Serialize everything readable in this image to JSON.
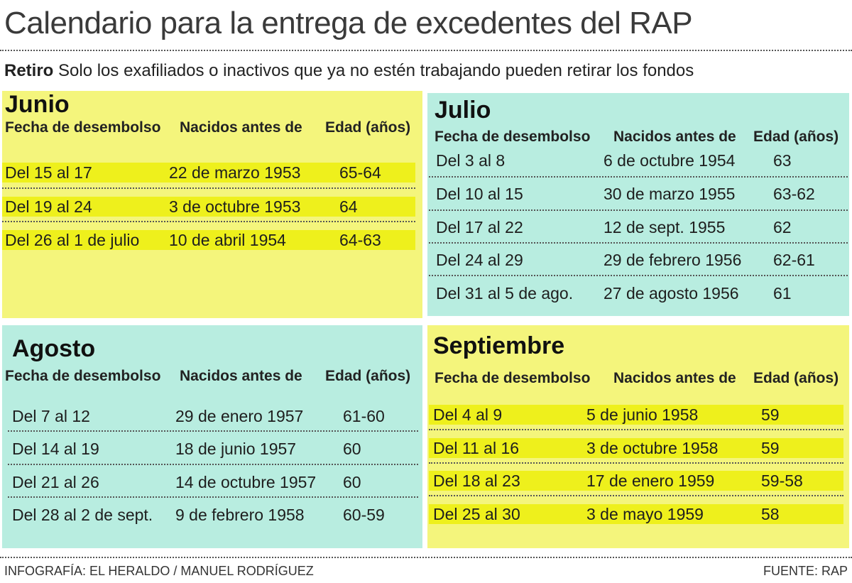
{
  "title": "Calendario para la entrega de excedentes del RAP",
  "subtitle": {
    "lead": "Retiro",
    "text": " Solo los exafiliados o inactivos que ya no estén trabajando pueden retirar los fondos"
  },
  "headers": {
    "col1": "Fecha de desembolso",
    "col2": "Nacidos antes de",
    "col3": "Edad (años)"
  },
  "months": [
    {
      "name": "Junio",
      "rows": [
        {
          "fecha": "Del 15 al 17",
          "nacidos": "22 de marzo 1953",
          "edad": "65-64"
        },
        {
          "fecha": "Del 19 al 24",
          "nacidos": "3 de octubre 1953",
          "edad": "64"
        },
        {
          "fecha": "Del 26 al 1 de julio",
          "nacidos": "10 de abril 1954",
          "edad": "64-63"
        }
      ]
    },
    {
      "name": "Julio",
      "rows": [
        {
          "fecha": "Del 3 al 8",
          "nacidos": "6 de octubre 1954",
          "edad": "63"
        },
        {
          "fecha": "Del 10 al 15",
          "nacidos": "30 de marzo 1955",
          "edad": "63-62"
        },
        {
          "fecha": "Del 17 al 22",
          "nacidos": "12 de sept. 1955",
          "edad": "62"
        },
        {
          "fecha": "Del 24 al 29",
          "nacidos": "29 de febrero 1956",
          "edad": "62-61"
        },
        {
          "fecha": "Del 31 al 5 de ago.",
          "nacidos": "27 de agosto 1956",
          "edad": "61"
        }
      ]
    },
    {
      "name": "Agosto",
      "rows": [
        {
          "fecha": "Del 7 al 12",
          "nacidos": "29 de enero 1957",
          "edad": "61-60"
        },
        {
          "fecha": "Del 14 al 19",
          "nacidos": "18 de junio 1957",
          "edad": "60"
        },
        {
          "fecha": "Del 21 al 26",
          "nacidos": "14 de octubre 1957",
          "edad": "60"
        },
        {
          "fecha": "Del 28 al 2 de sept.",
          "nacidos": "9 de febrero 1958",
          "edad": "60-59"
        }
      ]
    },
    {
      "name": "Septiembre",
      "rows": [
        {
          "fecha": "Del 4 al 9",
          "nacidos": "5 de junio 1958",
          "edad": "59"
        },
        {
          "fecha": "Del 11 al 16",
          "nacidos": "3 de octubre 1958",
          "edad": "59"
        },
        {
          "fecha": "Del 18 al 23",
          "nacidos": "17 de enero 1959",
          "edad": "59-58"
        },
        {
          "fecha": "Del 25 al 30",
          "nacidos": "3 de mayo 1959",
          "edad": "58"
        }
      ]
    }
  ],
  "footer": {
    "credit": "INFOGRAFÍA: EL HERALDO / MANUEL RODRÍGUEZ",
    "source": "FUENTE: RAP"
  },
  "colors": {
    "yellow_panel": "#f4f57c",
    "yellow_highlight": "#eef01c",
    "cyan_panel": "#b8ede0"
  }
}
